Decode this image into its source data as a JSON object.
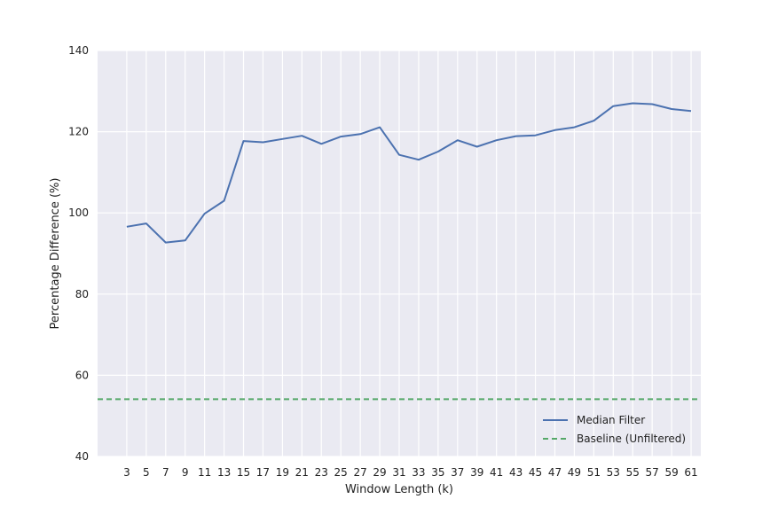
{
  "chart_data": {
    "type": "line",
    "title": "",
    "xlabel": "Window Length (k)",
    "ylabel": "Percentage Difference (%)",
    "xlim": [
      0,
      62
    ],
    "ylim": [
      40,
      140
    ],
    "yticks": [
      40,
      60,
      80,
      100,
      120,
      140
    ],
    "xticks": [
      3,
      5,
      7,
      9,
      11,
      13,
      15,
      17,
      19,
      21,
      23,
      25,
      27,
      29,
      31,
      33,
      35,
      37,
      39,
      41,
      43,
      45,
      47,
      49,
      51,
      53,
      55,
      57,
      59,
      61
    ],
    "grid": true,
    "legend": "bottom-right",
    "series": [
      {
        "name": "Median Filter",
        "color": "#4c72b0",
        "style": "solid",
        "x": [
          3,
          5,
          7,
          9,
          11,
          13,
          15,
          17,
          19,
          21,
          23,
          25,
          27,
          29,
          31,
          33,
          35,
          37,
          39,
          41,
          43,
          45,
          47,
          49,
          51,
          53,
          55,
          57,
          59,
          61
        ],
        "y": [
          96.6,
          97.4,
          92.7,
          93.2,
          99.8,
          103.0,
          117.7,
          117.4,
          118.2,
          119.0,
          117.0,
          118.8,
          119.4,
          121.1,
          114.3,
          113.1,
          115.1,
          117.9,
          116.3,
          117.9,
          118.9,
          119.1,
          120.4,
          121.1,
          122.7,
          126.3,
          127.0,
          126.8,
          125.6,
          125.1
        ]
      },
      {
        "name": "Baseline (Unfiltered)",
        "color": "#55a868",
        "style": "dashed",
        "y": [
          54.1
        ]
      }
    ]
  }
}
